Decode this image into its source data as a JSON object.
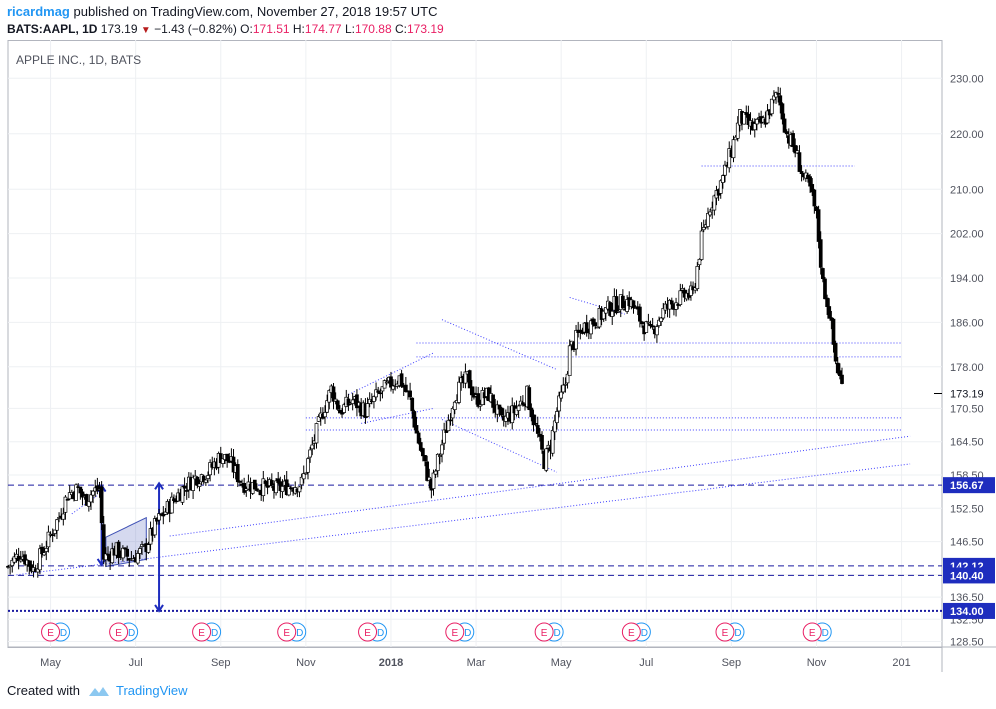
{
  "header": {
    "author": "ricardmag",
    "published_text": "published on TradingView.com, November 27, 2018 19:57 UTC",
    "symbol": "BATS:AAPL, 1D",
    "last": "173.19",
    "change": "−1.43 (−0.82%)",
    "o_label": "O:",
    "o_value": "171.51",
    "h_label": "H:",
    "h_value": "174.77",
    "l_label": "L:",
    "l_value": "170.88",
    "c_label": "C:",
    "c_value": "173.19"
  },
  "footer": {
    "created_with": "Created with",
    "brand": "TradingView"
  },
  "colors": {
    "candle": "#000000",
    "trend": "#3f3fff",
    "level": "#1a1aa0",
    "accent": "#2196f3",
    "earnings": "#e91e63"
  },
  "chart_data": {
    "type": "candlestick",
    "title": "APPLE INC., 1D, BATS",
    "ylim": [
      127.5,
      236
    ],
    "yticks": [
      "128.50",
      "132.50",
      "136.50",
      "140.50",
      "146.50",
      "152.50",
      "158.50",
      "164.50",
      "170.50",
      "178.00",
      "186.00",
      "194.00",
      "202.00",
      "210.00",
      "220.00",
      "230.00"
    ],
    "ytick_values": [
      128.5,
      132.5,
      136.5,
      140.5,
      146.5,
      152.5,
      158.5,
      164.5,
      170.5,
      178,
      186,
      194,
      202,
      210,
      220,
      230
    ],
    "xticks": [
      {
        "label": "May",
        "month": 4
      },
      {
        "label": "Jul",
        "month": 6
      },
      {
        "label": "Sep",
        "month": 8
      },
      {
        "label": "Nov",
        "month": 10
      },
      {
        "label": "2018",
        "month": 12
      },
      {
        "label": "Mar",
        "month": 14
      },
      {
        "label": "May",
        "month": 16
      },
      {
        "label": "Jul",
        "month": 18
      },
      {
        "label": "Sep",
        "month": 20
      },
      {
        "label": "Nov",
        "month": 22
      },
      {
        "label": "201",
        "month": 24
      }
    ],
    "price_path": [
      [
        3.0,
        142
      ],
      [
        3.3,
        144.5
      ],
      [
        3.6,
        141.5
      ],
      [
        3.9,
        146
      ],
      [
        4.2,
        151
      ],
      [
        4.4,
        155
      ],
      [
        4.65,
        156
      ],
      [
        4.8,
        154
      ],
      [
        5.0,
        155.5
      ],
      [
        5.15,
        156
      ],
      [
        5.25,
        143.5
      ],
      [
        5.5,
        145
      ],
      [
        5.9,
        143.5
      ],
      [
        6.2,
        145
      ],
      [
        6.5,
        150
      ],
      [
        6.8,
        153
      ],
      [
        7.1,
        156
      ],
      [
        7.4,
        158
      ],
      [
        7.7,
        159
      ],
      [
        8.0,
        162
      ],
      [
        8.2,
        161
      ],
      [
        8.5,
        157
      ],
      [
        8.9,
        156.5
      ],
      [
        9.3,
        156
      ],
      [
        9.6,
        156.5
      ],
      [
        9.9,
        157
      ],
      [
        10.2,
        165
      ],
      [
        10.4,
        170
      ],
      [
        10.6,
        174
      ],
      [
        10.8,
        170
      ],
      [
        11.1,
        172
      ],
      [
        11.4,
        170
      ],
      [
        11.7,
        173
      ],
      [
        12.0,
        175
      ],
      [
        12.2,
        176
      ],
      [
        12.45,
        172
      ],
      [
        12.6,
        166
      ],
      [
        12.8,
        160
      ],
      [
        12.95,
        156
      ],
      [
        13.1,
        161
      ],
      [
        13.3,
        167
      ],
      [
        13.5,
        173
      ],
      [
        13.8,
        176
      ],
      [
        14.0,
        172
      ],
      [
        14.3,
        173
      ],
      [
        14.6,
        168
      ],
      [
        14.9,
        170
      ],
      [
        15.2,
        173
      ],
      [
        15.5,
        164
      ],
      [
        15.6,
        161
      ],
      [
        15.75,
        164
      ],
      [
        15.9,
        170
      ],
      [
        16.1,
        175
      ],
      [
        16.2,
        181
      ],
      [
        16.5,
        185
      ],
      [
        16.9,
        187
      ],
      [
        17.2,
        189
      ],
      [
        17.6,
        190
      ],
      [
        17.9,
        186
      ],
      [
        18.1,
        184
      ],
      [
        18.4,
        188
      ],
      [
        18.7,
        190
      ],
      [
        18.95,
        191
      ],
      [
        19.1,
        191
      ],
      [
        19.3,
        201
      ],
      [
        19.5,
        207
      ],
      [
        19.8,
        212
      ],
      [
        20.0,
        217
      ],
      [
        20.2,
        223
      ],
      [
        20.5,
        221
      ],
      [
        20.75,
        222
      ],
      [
        21.0,
        226
      ],
      [
        21.1,
        227
      ],
      [
        21.3,
        220
      ],
      [
        21.5,
        217
      ],
      [
        21.7,
        212
      ],
      [
        21.85,
        210
      ],
      [
        22.0,
        205
      ],
      [
        22.15,
        193
      ],
      [
        22.3,
        188
      ],
      [
        22.45,
        179
      ],
      [
        22.65,
        173
      ]
    ],
    "horizontal_levels": [
      {
        "value": 156.67,
        "label": "156.67"
      },
      {
        "value": 142.12,
        "label": "142.12"
      },
      {
        "value": 140.4,
        "label": "140.40"
      },
      {
        "value": 134.0,
        "label": "134.00"
      }
    ],
    "current_price": "173.19",
    "current_value": 173.19,
    "earnings_months": [
      4.0,
      5.6,
      7.55,
      9.55,
      11.45,
      13.5,
      15.6,
      17.65,
      19.85,
      21.9
    ],
    "earnings_label": "E",
    "dividend_label": "D"
  }
}
